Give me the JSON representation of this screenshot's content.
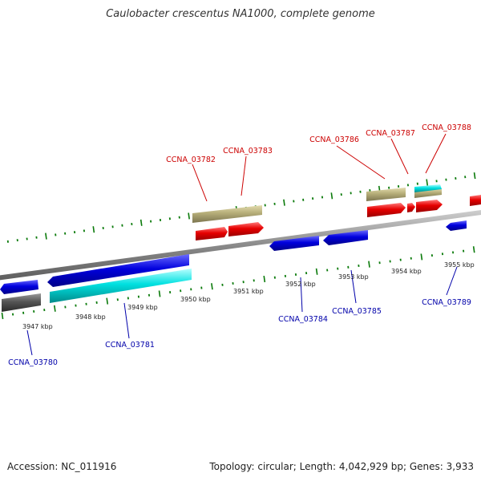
{
  "title": "Caulobacter crescentus NA1000, complete genome",
  "footer": {
    "accession": "Accession: NC_011916",
    "info": "Topology: circular; Length: 4,042,929 bp; Genes: 3,933"
  },
  "colors": {
    "forward_label": "#cc0000",
    "reverse_label": "#0000aa",
    "tick": "#0a7a0a",
    "backbone": "#8a8a8a"
  },
  "kbp_ticks": [
    "3947 kbp",
    "3948 kbp",
    "3949 kbp",
    "3950 kbp",
    "3951 kbp",
    "3952 kbp",
    "3953 kbp",
    "3954 kbp",
    "3955 kbp"
  ],
  "gene_labels": {
    "forward": [
      "CCNA_03782",
      "CCNA_03783",
      "CCNA_03786",
      "CCNA_03787",
      "CCNA_03788"
    ],
    "reverse": [
      "CCNA_03780",
      "CCNA_03781",
      "CCNA_03784",
      "CCNA_03785",
      "CCNA_03789"
    ]
  },
  "feature_colors": {
    "cds": "#e60000",
    "gene_forward": "#b5ad78",
    "gene_reverse": "#0000dd",
    "rna": "#00dddd",
    "pseudo": "#555555"
  }
}
